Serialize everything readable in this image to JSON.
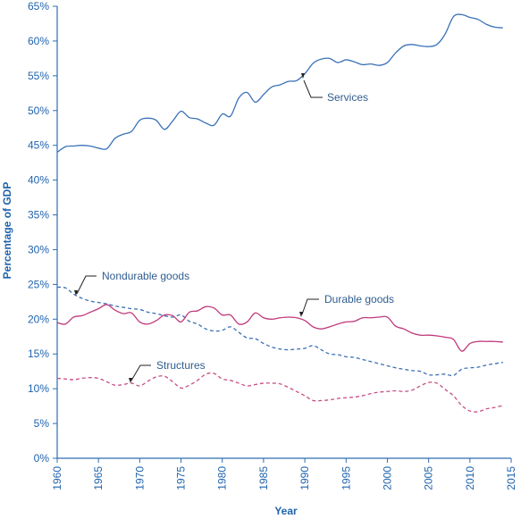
{
  "colors": {
    "axis": "#2f6db3",
    "text": "#1f63ad",
    "annotation_text": "#2f5d8f",
    "services": "#3a72b8",
    "nondurable": "#3a6fb5",
    "durable": "#c0397a",
    "structures": "#c74f86"
  },
  "chart_data": {
    "type": "line",
    "title": "",
    "xlabel": "Year",
    "ylabel": "Percentage of GDP",
    "xlim": [
      1960,
      2015
    ],
    "ylim": [
      0,
      65
    ],
    "grid": false,
    "x_ticks": [
      "1960",
      "1965",
      "1970",
      "1975",
      "1980",
      "1985",
      "1990",
      "1995",
      "2000",
      "2005",
      "2010",
      "2015"
    ],
    "y_ticks": [
      "0%",
      "5%",
      "10%",
      "15%",
      "20%",
      "25%",
      "30%",
      "35%",
      "40%",
      "45%",
      "50%",
      "55%",
      "60%",
      "65%"
    ],
    "series": [
      {
        "name": "Services",
        "style": "solid",
        "color_key": "services",
        "label_key": "label_services",
        "points": [
          [
            1960,
            44
          ],
          [
            1961,
            44.8
          ],
          [
            1962,
            44.9
          ],
          [
            1963,
            45
          ],
          [
            1964,
            44.9
          ],
          [
            1965,
            44.6
          ],
          [
            1966,
            44.5
          ],
          [
            1967,
            46
          ],
          [
            1968,
            46.6
          ],
          [
            1969,
            47
          ],
          [
            1970,
            48.6
          ],
          [
            1971,
            48.9
          ],
          [
            1972,
            48.6
          ],
          [
            1973,
            47.3
          ],
          [
            1974,
            48.5
          ],
          [
            1975,
            49.9
          ],
          [
            1976,
            49
          ],
          [
            1977,
            48.8
          ],
          [
            1978,
            48.2
          ],
          [
            1979,
            47.9
          ],
          [
            1980,
            49.5
          ],
          [
            1981,
            49.2
          ],
          [
            1982,
            51.8
          ],
          [
            1983,
            52.6
          ],
          [
            1984,
            51.2
          ],
          [
            1985,
            52.3
          ],
          [
            1986,
            53.4
          ],
          [
            1987,
            53.7
          ],
          [
            1988,
            54.2
          ],
          [
            1989,
            54.3
          ],
          [
            1990,
            55.3
          ],
          [
            1991,
            56.8
          ],
          [
            1992,
            57.4
          ],
          [
            1993,
            57.5
          ],
          [
            1994,
            56.9
          ],
          [
            1995,
            57.3
          ],
          [
            1996,
            57
          ],
          [
            1997,
            56.6
          ],
          [
            1998,
            56.7
          ],
          [
            1999,
            56.5
          ],
          [
            2000,
            56.9
          ],
          [
            2001,
            58.3
          ],
          [
            2002,
            59.3
          ],
          [
            2003,
            59.5
          ],
          [
            2004,
            59.3
          ],
          [
            2005,
            59.2
          ],
          [
            2006,
            59.5
          ],
          [
            2007,
            61
          ],
          [
            2008,
            63.5
          ],
          [
            2009,
            63.8
          ],
          [
            2010,
            63.4
          ],
          [
            2011,
            63.1
          ],
          [
            2012,
            62.4
          ],
          [
            2013,
            62
          ],
          [
            2014,
            61.9
          ]
        ]
      },
      {
        "name": "Nondurable goods",
        "style": "dashed",
        "color_key": "nondurable",
        "label_key": "label_nondurable",
        "points": [
          [
            1960,
            24.6
          ],
          [
            1961,
            24.5
          ],
          [
            1962,
            23.6
          ],
          [
            1963,
            23
          ],
          [
            1964,
            22.6
          ],
          [
            1965,
            22.4
          ],
          [
            1966,
            22.2
          ],
          [
            1967,
            21.9
          ],
          [
            1968,
            21.7
          ],
          [
            1969,
            21.5
          ],
          [
            1970,
            21.4
          ],
          [
            1971,
            21
          ],
          [
            1972,
            20.8
          ],
          [
            1973,
            20.5
          ],
          [
            1974,
            20.3
          ],
          [
            1975,
            20.6
          ],
          [
            1976,
            19.7
          ],
          [
            1977,
            19.3
          ],
          [
            1978,
            18.6
          ],
          [
            1979,
            18.3
          ],
          [
            1980,
            18.4
          ],
          [
            1981,
            18.9
          ],
          [
            1982,
            18.1
          ],
          [
            1983,
            17.3
          ],
          [
            1984,
            17.2
          ],
          [
            1985,
            16.5
          ],
          [
            1986,
            16
          ],
          [
            1987,
            15.7
          ],
          [
            1988,
            15.6
          ],
          [
            1989,
            15.7
          ],
          [
            1990,
            15.8
          ],
          [
            1991,
            16.2
          ],
          [
            1992,
            15.6
          ],
          [
            1993,
            15
          ],
          [
            1994,
            14.9
          ],
          [
            1995,
            14.6
          ],
          [
            1996,
            14.5
          ],
          [
            1997,
            14.2
          ],
          [
            1998,
            13.9
          ],
          [
            1999,
            13.6
          ],
          [
            2000,
            13.3
          ],
          [
            2001,
            13
          ],
          [
            2002,
            12.8
          ],
          [
            2003,
            12.6
          ],
          [
            2004,
            12.5
          ],
          [
            2005,
            12
          ],
          [
            2006,
            12
          ],
          [
            2007,
            12.1
          ],
          [
            2008,
            11.9
          ],
          [
            2009,
            12.8
          ],
          [
            2010,
            13
          ],
          [
            2011,
            13.1
          ],
          [
            2012,
            13.4
          ],
          [
            2013,
            13.6
          ],
          [
            2014,
            13.8
          ]
        ]
      },
      {
        "name": "Durable goods",
        "style": "solid",
        "color_key": "durable",
        "label_key": "label_durable",
        "points": [
          [
            1960,
            19.5
          ],
          [
            1961,
            19.3
          ],
          [
            1962,
            20.3
          ],
          [
            1963,
            20.5
          ],
          [
            1964,
            21
          ],
          [
            1965,
            21.5
          ],
          [
            1966,
            22.1
          ],
          [
            1967,
            21.3
          ],
          [
            1968,
            20.8
          ],
          [
            1969,
            20.9
          ],
          [
            1970,
            19.6
          ],
          [
            1971,
            19.3
          ],
          [
            1972,
            19.8
          ],
          [
            1973,
            20.6
          ],
          [
            1974,
            20.5
          ],
          [
            1975,
            19.6
          ],
          [
            1976,
            21
          ],
          [
            1977,
            21.2
          ],
          [
            1978,
            21.8
          ],
          [
            1979,
            21.6
          ],
          [
            1980,
            20.6
          ],
          [
            1981,
            20.6
          ],
          [
            1982,
            19.3
          ],
          [
            1983,
            19.6
          ],
          [
            1984,
            20.9
          ],
          [
            1985,
            20.2
          ],
          [
            1986,
            20
          ],
          [
            1987,
            20.2
          ],
          [
            1988,
            20.3
          ],
          [
            1989,
            20.2
          ],
          [
            1990,
            19.8
          ],
          [
            1991,
            18.9
          ],
          [
            1992,
            18.6
          ],
          [
            1993,
            18.9
          ],
          [
            1994,
            19.3
          ],
          [
            1995,
            19.6
          ],
          [
            1996,
            19.7
          ],
          [
            1997,
            20.2
          ],
          [
            1998,
            20.2
          ],
          [
            1999,
            20.3
          ],
          [
            2000,
            20.3
          ],
          [
            2001,
            19
          ],
          [
            2002,
            18.6
          ],
          [
            2003,
            18
          ],
          [
            2004,
            17.7
          ],
          [
            2005,
            17.7
          ],
          [
            2006,
            17.6
          ],
          [
            2007,
            17.4
          ],
          [
            2008,
            17.1
          ],
          [
            2009,
            15.4
          ],
          [
            2010,
            16.5
          ],
          [
            2011,
            16.8
          ],
          [
            2012,
            16.8
          ],
          [
            2013,
            16.8
          ],
          [
            2014,
            16.7
          ]
        ]
      },
      {
        "name": "Structures",
        "style": "dashed",
        "color_key": "structures",
        "label_key": "label_structures",
        "points": [
          [
            1960,
            11.5
          ],
          [
            1961,
            11.4
          ],
          [
            1962,
            11.3
          ],
          [
            1963,
            11.5
          ],
          [
            1964,
            11.6
          ],
          [
            1965,
            11.5
          ],
          [
            1966,
            11
          ],
          [
            1967,
            10.5
          ],
          [
            1968,
            10.6
          ],
          [
            1969,
            10.8
          ],
          [
            1970,
            10.4
          ],
          [
            1971,
            11.1
          ],
          [
            1972,
            11.7
          ],
          [
            1973,
            11.8
          ],
          [
            1974,
            11
          ],
          [
            1975,
            10.1
          ],
          [
            1976,
            10.5
          ],
          [
            1977,
            11.2
          ],
          [
            1978,
            12.1
          ],
          [
            1979,
            12.2
          ],
          [
            1980,
            11.4
          ],
          [
            1981,
            11.2
          ],
          [
            1982,
            10.8
          ],
          [
            1983,
            10.4
          ],
          [
            1984,
            10.6
          ],
          [
            1985,
            10.8
          ],
          [
            1986,
            10.8
          ],
          [
            1987,
            10.7
          ],
          [
            1988,
            10.2
          ],
          [
            1989,
            9.6
          ],
          [
            1990,
            9
          ],
          [
            1991,
            8.3
          ],
          [
            1992,
            8.3
          ],
          [
            1993,
            8.4
          ],
          [
            1994,
            8.6
          ],
          [
            1995,
            8.7
          ],
          [
            1996,
            8.8
          ],
          [
            1997,
            9
          ],
          [
            1998,
            9.3
          ],
          [
            1999,
            9.5
          ],
          [
            2000,
            9.6
          ],
          [
            2001,
            9.7
          ],
          [
            2002,
            9.6
          ],
          [
            2003,
            9.8
          ],
          [
            2004,
            10.4
          ],
          [
            2005,
            10.9
          ],
          [
            2006,
            10.8
          ],
          [
            2007,
            9.9
          ],
          [
            2008,
            9
          ],
          [
            2009,
            7.6
          ],
          [
            2010,
            6.8
          ],
          [
            2011,
            6.7
          ],
          [
            2012,
            7.1
          ],
          [
            2013,
            7.3
          ],
          [
            2014,
            7.6
          ]
        ]
      }
    ],
    "label_services": "Services",
    "label_nondurable": "Nondurable goods",
    "label_durable": "Durable goods",
    "label_structures": "Structures"
  }
}
